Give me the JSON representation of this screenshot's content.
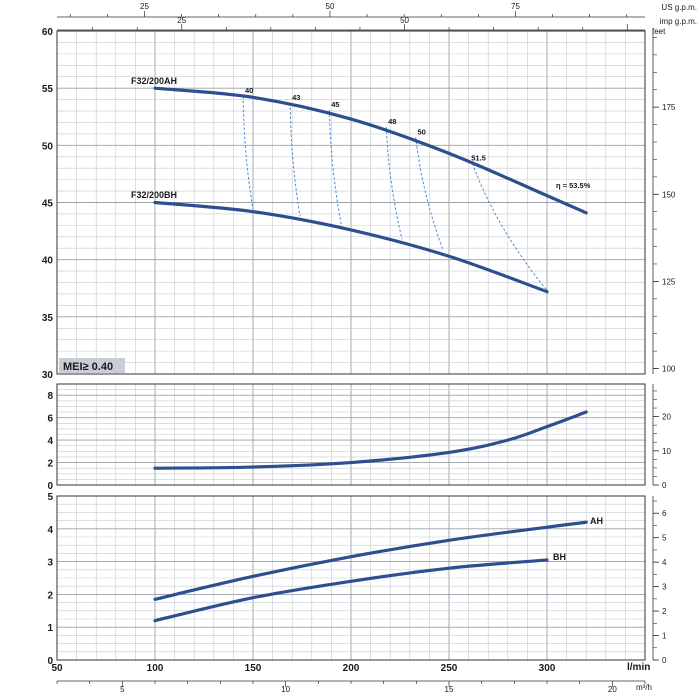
{
  "top_axes": {
    "us_gpm": {
      "label": "US g.p.m.",
      "ticks": [
        25,
        50,
        75
      ]
    },
    "imp_gpm": {
      "label": "imp g.p.m.",
      "ticks": [
        25,
        50
      ]
    }
  },
  "bottom_axes": {
    "lmin": {
      "label": "l/min",
      "ticks": [
        50,
        100,
        150,
        200,
        250,
        300
      ]
    },
    "m3h": {
      "label": "m³/h",
      "ticks": [
        5,
        10,
        15,
        20
      ]
    }
  },
  "mei_badge": "MEI≥ 0.40",
  "chart_data": [
    {
      "type": "line",
      "panel": "head",
      "xlabel": "l/min",
      "xlim": [
        50,
        350
      ],
      "ylim": [
        30,
        60
      ],
      "yticks": [
        30,
        35,
        40,
        45,
        50,
        55,
        60
      ],
      "right_axis": {
        "label": "feet",
        "ticks": [
          100,
          125,
          150,
          175
        ]
      },
      "series": [
        {
          "name": "F32/200AH",
          "x": [
            100,
            150,
            200,
            250,
            300,
            320
          ],
          "y": [
            55,
            54.2,
            52.3,
            49.3,
            45.6,
            44.1
          ]
        },
        {
          "name": "F32/200BH",
          "x": [
            100,
            150,
            200,
            250,
            300
          ],
          "y": [
            45,
            44.2,
            42.6,
            40.3,
            37.2
          ]
        }
      ],
      "efficiency_lines": [
        {
          "label": "40",
          "top": [
            145,
            54.3
          ],
          "bottom": [
            150,
            44.4
          ]
        },
        {
          "label": "43",
          "top": [
            169,
            53.7
          ],
          "bottom": [
            174,
            43.8
          ]
        },
        {
          "label": "45",
          "top": [
            189,
            53.1
          ],
          "bottom": [
            195,
            43.1
          ]
        },
        {
          "label": "48",
          "top": [
            218,
            51.6
          ],
          "bottom": [
            226,
            41.8
          ]
        },
        {
          "label": "50",
          "top": [
            233,
            50.7
          ],
          "bottom": [
            247,
            40.8
          ]
        },
        {
          "label": "51.5",
          "top": [
            262,
            48.4
          ],
          "bottom": [
            300,
            37.3
          ]
        }
      ],
      "eta_label": "η = 53.5%"
    },
    {
      "type": "line",
      "panel": "npsh",
      "xlim": [
        50,
        350
      ],
      "ylim": [
        0,
        9
      ],
      "yticks": [
        0,
        2,
        4,
        6,
        8
      ],
      "right_axis": {
        "ticks": [
          0,
          10,
          20
        ]
      },
      "series": [
        {
          "x": [
            100,
            150,
            200,
            250,
            280,
            300,
            320
          ],
          "y": [
            1.5,
            1.6,
            2.0,
            2.9,
            4.0,
            5.2,
            6.5
          ]
        }
      ]
    },
    {
      "type": "line",
      "panel": "power",
      "xlim": [
        50,
        350
      ],
      "ylim": [
        0,
        5
      ],
      "yticks": [
        0,
        1,
        2,
        3,
        4,
        5
      ],
      "right_axis": {
        "ticks": [
          0,
          1,
          2,
          3,
          4,
          5,
          6
        ]
      },
      "series": [
        {
          "name": "AH",
          "x": [
            100,
            150,
            200,
            250,
            300,
            320
          ],
          "y": [
            1.85,
            2.55,
            3.15,
            3.65,
            4.05,
            4.2
          ]
        },
        {
          "name": "BH",
          "x": [
            100,
            150,
            200,
            250,
            300
          ],
          "y": [
            1.2,
            1.9,
            2.4,
            2.8,
            3.05
          ]
        }
      ]
    }
  ]
}
